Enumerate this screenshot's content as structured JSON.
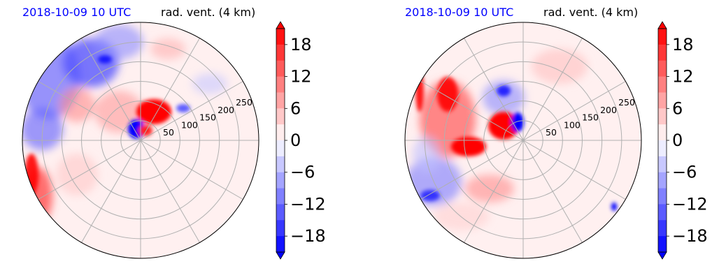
{
  "chart_data": [
    {
      "type": "heatmap",
      "projection": "polar",
      "title_left": "2018-10-09 10 UTC",
      "title_right": "rad. vent. (4 km)",
      "radial_ticks": [
        50,
        100,
        150,
        200,
        250
      ],
      "r_max": 300,
      "colorbar": {
        "ticks": [
          "18",
          "12",
          "6",
          "0",
          "−6",
          "−12",
          "−18"
        ],
        "vmin": -21,
        "vmax": 21,
        "extend": "both",
        "cmap": "bwr"
      }
    },
    {
      "type": "heatmap",
      "projection": "polar",
      "title_left": "2018-10-09 10 UTC",
      "title_right": "rad. vent. (4 km)",
      "radial_ticks": [
        50,
        100,
        150,
        200,
        250
      ],
      "r_max": 300,
      "colorbar": {
        "ticks": [
          "18",
          "12",
          "6",
          "0",
          "−6",
          "−12",
          "−18"
        ],
        "vmin": -21,
        "vmax": 21,
        "extend": "both",
        "cmap": "bwr"
      }
    }
  ],
  "colors": {
    "title_date": "#0000ff",
    "positive": "#ff0000",
    "negative": "#0000ff",
    "zero": "#ffffff",
    "grid": "#b0b0b0"
  }
}
